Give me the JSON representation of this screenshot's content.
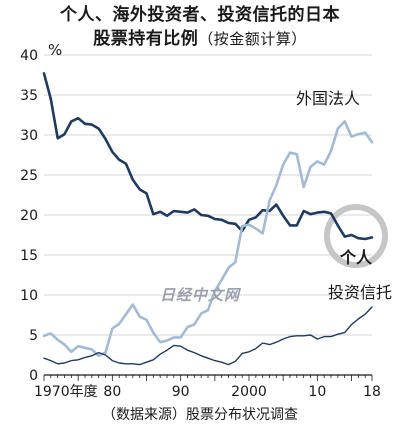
{
  "header": {
    "title_line1": "个人、海外投资者、投资信托的日本",
    "title_line2": "股票持有比例",
    "title_note": "（按金额计算）"
  },
  "footer": {
    "source": "（数据来源）股票分布状况调查"
  },
  "watermark": "日经中文网",
  "chart_data": {
    "type": "line",
    "title": "个人、海外投资者、投资信托的日本股票持有比例（按金额计算）",
    "ylabel": "%",
    "xlabel": "",
    "ylim": [
      0,
      40
    ],
    "xlim": [
      1970,
      2018
    ],
    "yticks": [
      0,
      5,
      10,
      15,
      20,
      25,
      30,
      35,
      40
    ],
    "xticks": [
      {
        "value": 1970,
        "label": "1970年度"
      },
      {
        "value": 1980,
        "label": "80"
      },
      {
        "value": 1990,
        "label": "90"
      },
      {
        "value": 2000,
        "label": "2000"
      },
      {
        "value": 2010,
        "label": "10"
      },
      {
        "value": 2018,
        "label": "18"
      }
    ],
    "grid": true,
    "x": [
      1970,
      1971,
      1972,
      1973,
      1974,
      1975,
      1976,
      1977,
      1978,
      1979,
      1980,
      1981,
      1982,
      1983,
      1984,
      1985,
      1986,
      1987,
      1988,
      1989,
      1990,
      1991,
      1992,
      1993,
      1994,
      1995,
      1996,
      1997,
      1998,
      1999,
      2000,
      2001,
      2002,
      2003,
      2004,
      2005,
      2006,
      2007,
      2008,
      2009,
      2010,
      2011,
      2012,
      2013,
      2014,
      2015,
      2016,
      2017,
      2018
    ],
    "series": [
      {
        "name": "个人",
        "color": "#1f3a60",
        "highlight": "circle",
        "values": [
          37.7,
          34.5,
          29.6,
          30.1,
          31.7,
          32.1,
          31.4,
          31.3,
          30.8,
          29.5,
          27.9,
          26.9,
          26.4,
          24.4,
          23.2,
          22.7,
          20.1,
          20.4,
          19.9,
          20.5,
          20.4,
          20.3,
          20.7,
          20.0,
          19.9,
          19.5,
          19.4,
          19.0,
          18.9,
          18.0,
          19.4,
          19.7,
          20.6,
          20.5,
          21.3,
          19.9,
          18.7,
          18.7,
          20.5,
          20.1,
          20.3,
          20.4,
          20.2,
          18.7,
          17.3,
          17.5,
          17.1,
          17.0,
          17.2
        ]
      },
      {
        "name": "外国法人",
        "color": "#a3bad4",
        "values": [
          4.9,
          5.2,
          4.4,
          3.8,
          2.9,
          3.6,
          3.4,
          3.2,
          2.4,
          2.8,
          5.8,
          6.4,
          7.6,
          8.8,
          7.3,
          6.9,
          5.3,
          4.1,
          4.3,
          4.7,
          4.7,
          6.0,
          6.3,
          7.7,
          8.1,
          10.5,
          11.9,
          13.4,
          14.1,
          18.6,
          18.8,
          18.3,
          17.7,
          21.8,
          23.7,
          26.3,
          27.8,
          27.6,
          23.5,
          26.0,
          26.7,
          26.3,
          28.0,
          30.8,
          31.7,
          29.8,
          30.1,
          30.3,
          29.1
        ]
      },
      {
        "name": "投资信托",
        "color": "#1f3a60",
        "values": [
          2.1,
          1.8,
          1.4,
          1.5,
          1.8,
          1.9,
          2.2,
          2.4,
          2.8,
          2.5,
          1.8,
          1.5,
          1.4,
          1.4,
          1.3,
          1.6,
          1.9,
          2.6,
          3.1,
          3.7,
          3.6,
          3.1,
          2.8,
          2.4,
          2.1,
          1.8,
          1.6,
          1.3,
          1.7,
          2.7,
          2.9,
          3.3,
          4.0,
          3.8,
          4.1,
          4.5,
          4.8,
          4.9,
          4.9,
          5.0,
          4.5,
          4.8,
          4.8,
          5.1,
          5.3,
          6.3,
          7.0,
          7.6,
          8.5
        ]
      }
    ]
  }
}
